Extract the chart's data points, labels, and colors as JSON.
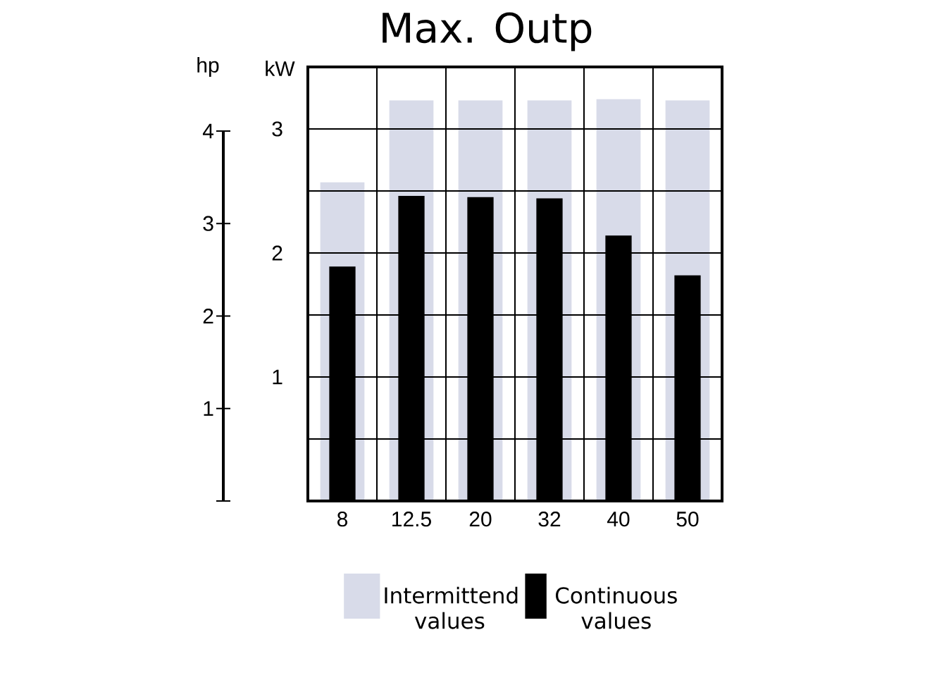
{
  "chart_data": {
    "type": "bar",
    "title": "Max. Outp",
    "ylabel": "kW",
    "y2label": "hp",
    "categories": [
      "8",
      "12.5",
      "20",
      "32",
      "40",
      "50"
    ],
    "series": [
      {
        "name": "Intermittend values",
        "color": "#d8dbe9",
        "values": [
          2.57,
          3.23,
          3.23,
          3.23,
          3.24,
          3.23
        ]
      },
      {
        "name": "Continuous values",
        "color": "#000000",
        "values": [
          1.89,
          2.46,
          2.45,
          2.44,
          2.14,
          1.82
        ]
      }
    ],
    "ylim": [
      0,
      3.5
    ],
    "yticks": [
      {
        "value": 0.5,
        "label": null
      },
      1,
      {
        "value": 1.5,
        "label": null
      },
      2,
      {
        "value": 2.5,
        "label": null
      },
      3
    ],
    "y2lim": [
      0,
      4
    ],
    "y2ticks": [
      {
        "value": 0,
        "label": null
      },
      1,
      2,
      3,
      4
    ],
    "grid": true,
    "legend": "bottom"
  }
}
